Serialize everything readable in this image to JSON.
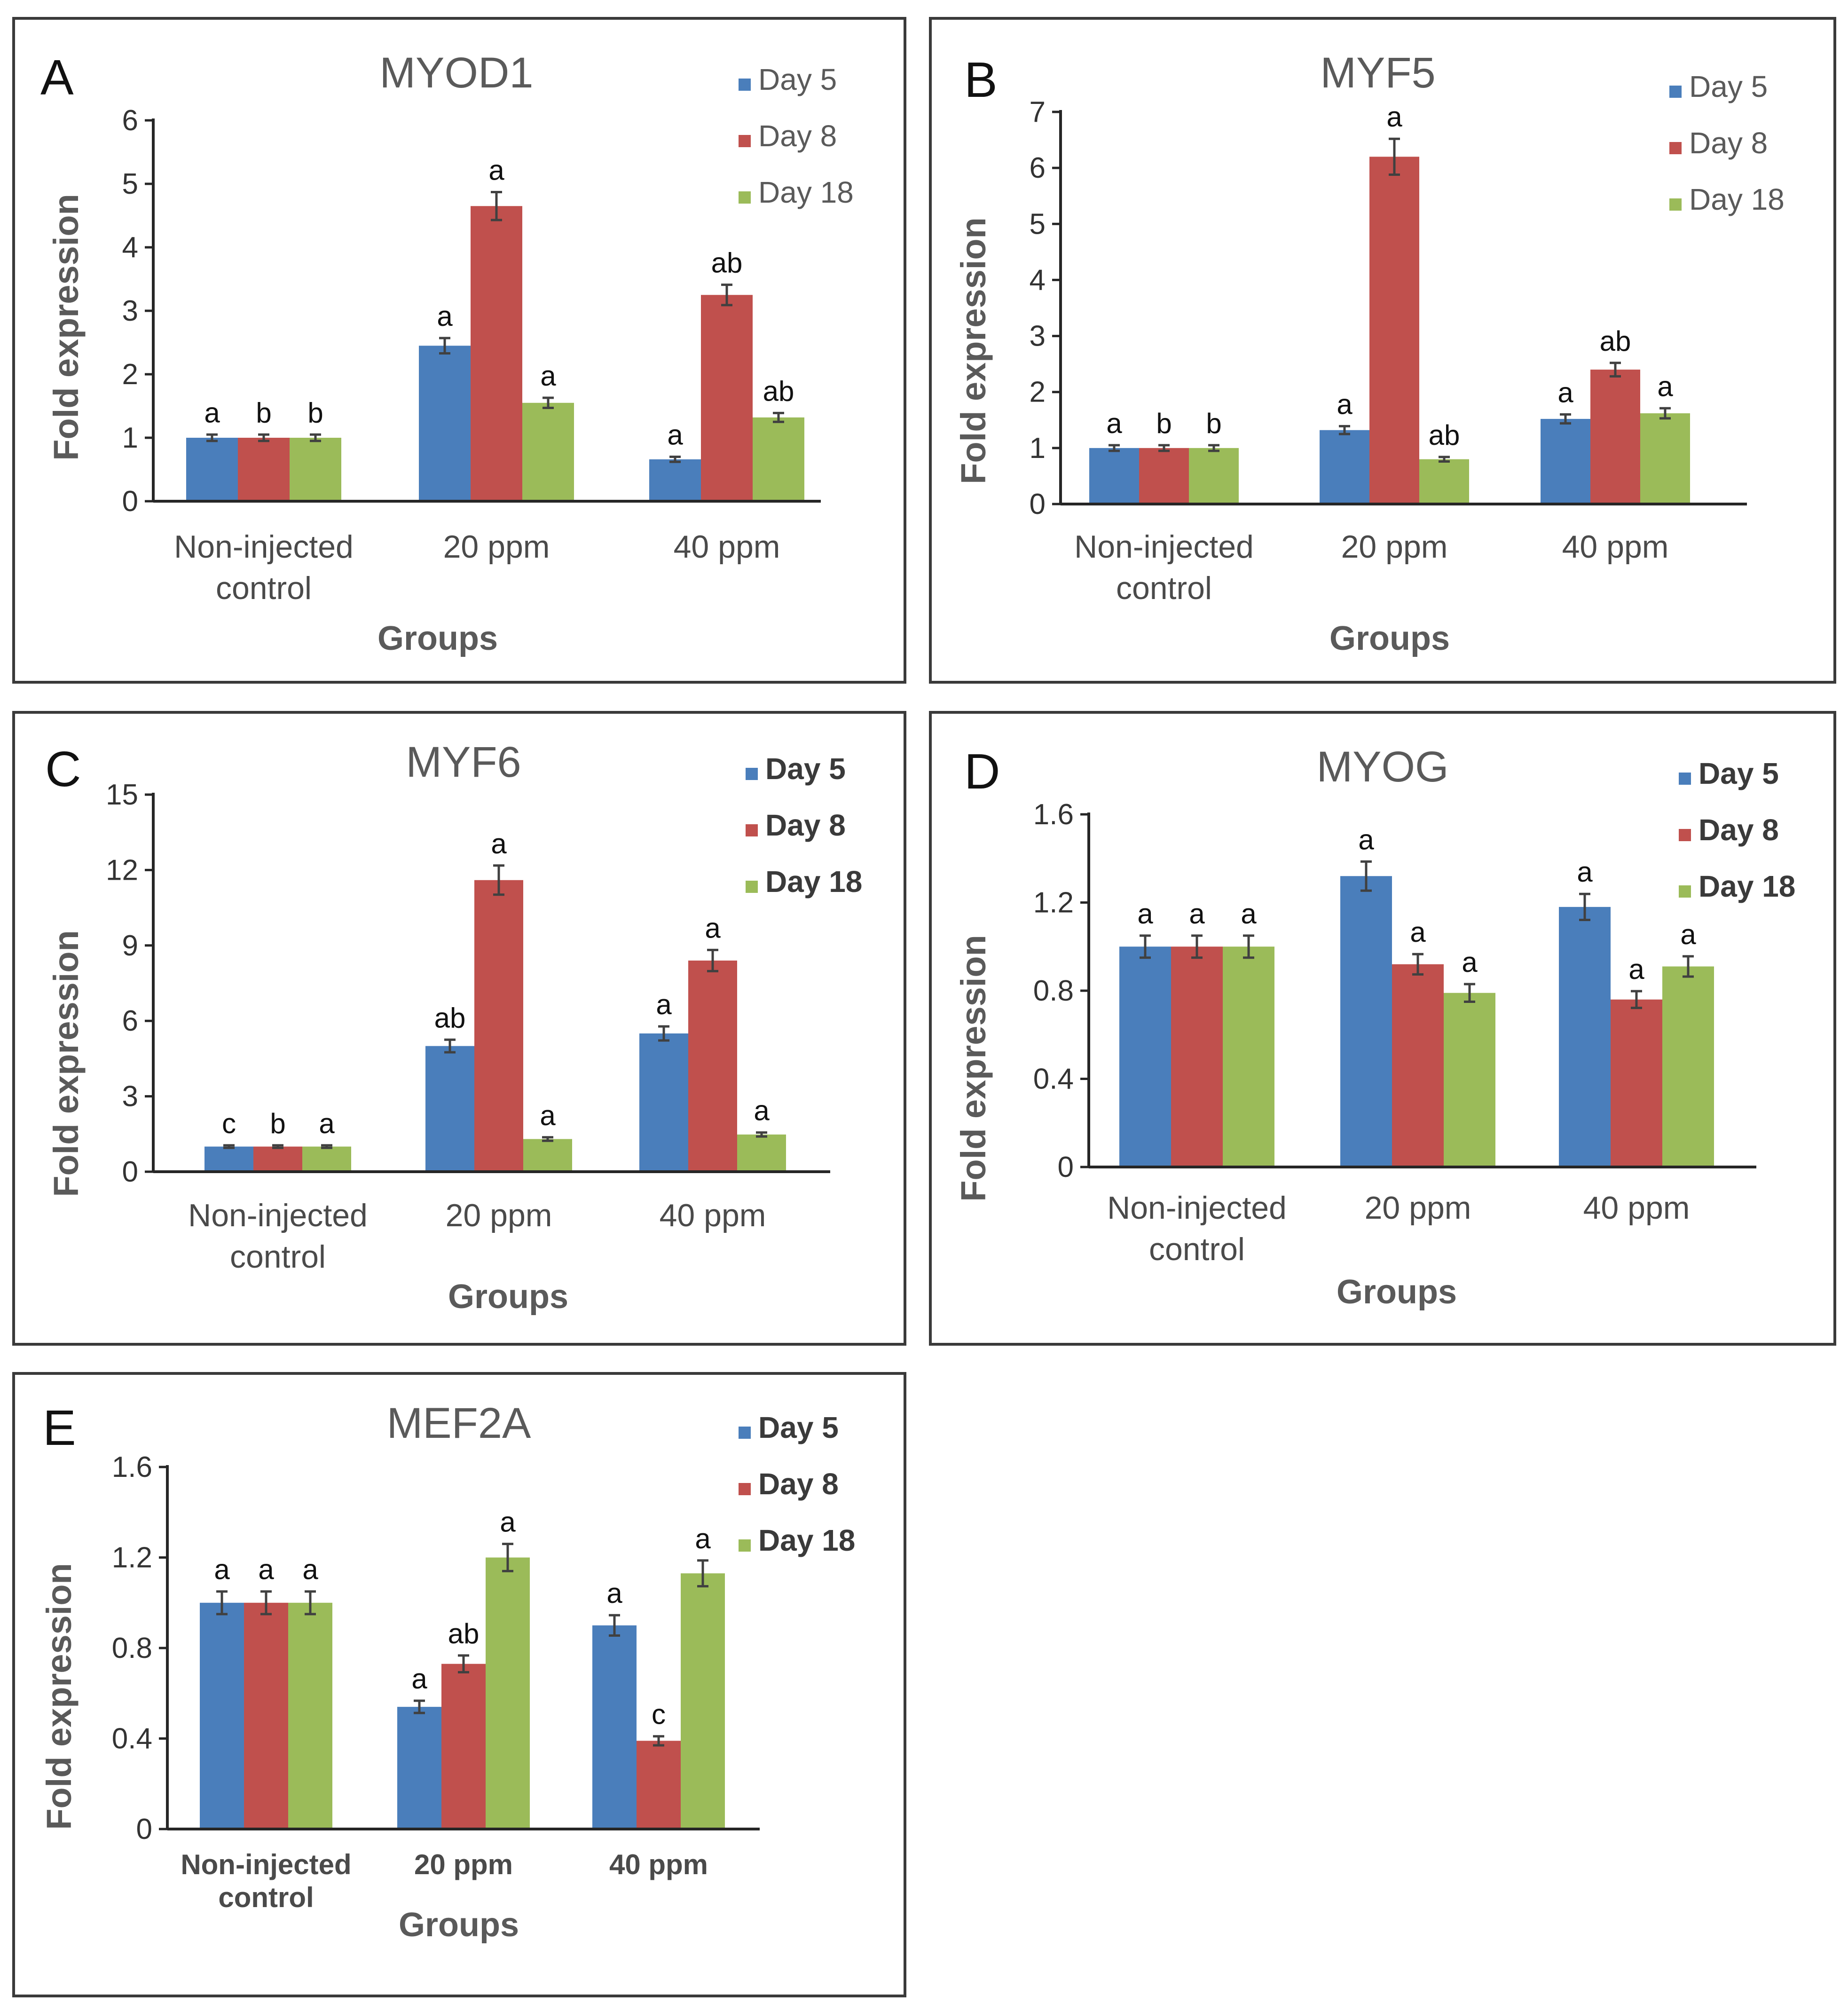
{
  "colors": {
    "Day 5": "#4A7EBB",
    "Day 8": "#C0504D",
    "Day 18": "#9BBB59"
  },
  "chart_data": [
    {
      "panel_letter": "A",
      "type": "bar",
      "title": "MYOD1",
      "xlabel": "Groups",
      "ylabel": "Fold expression",
      "categories": [
        "Non-injected control",
        "20 ppm",
        "40 ppm"
      ],
      "ylim": [
        0,
        6
      ],
      "yticks": [
        "0",
        "1",
        "2",
        "3",
        "4",
        "5",
        "6"
      ],
      "legend_bold": false,
      "series": [
        {
          "name": "Day 5",
          "values": [
            1.0,
            2.45,
            0.66
          ],
          "errors": [
            0.05,
            0.12,
            0.04
          ],
          "labels": [
            "a",
            "a",
            "a"
          ]
        },
        {
          "name": "Day 8",
          "values": [
            1.0,
            4.65,
            3.25
          ],
          "errors": [
            0.05,
            0.22,
            0.16
          ],
          "labels": [
            "b",
            "a",
            "ab"
          ]
        },
        {
          "name": "Day 18",
          "values": [
            1.0,
            1.55,
            1.32
          ],
          "errors": [
            0.05,
            0.08,
            0.07
          ],
          "labels": [
            "b",
            "a",
            "ab"
          ]
        }
      ]
    },
    {
      "panel_letter": "B",
      "type": "bar",
      "title": "MYF5",
      "xlabel": "Groups",
      "ylabel": "Fold expression",
      "categories": [
        "Non-injected control",
        "20 ppm",
        "40 ppm"
      ],
      "ylim": [
        0,
        7
      ],
      "yticks": [
        "0",
        "1",
        "2",
        "3",
        "4",
        "5",
        "6",
        "7"
      ],
      "legend_bold": false,
      "series": [
        {
          "name": "Day 5",
          "values": [
            1.0,
            1.32,
            1.52
          ],
          "errors": [
            0.05,
            0.07,
            0.08
          ],
          "labels": [
            "a",
            "a",
            "a"
          ]
        },
        {
          "name": "Day 8",
          "values": [
            1.0,
            6.2,
            2.4
          ],
          "errors": [
            0.05,
            0.32,
            0.12
          ],
          "labels": [
            "b",
            "a",
            "ab"
          ]
        },
        {
          "name": "Day 18",
          "values": [
            1.0,
            0.8,
            1.62
          ],
          "errors": [
            0.05,
            0.04,
            0.09
          ],
          "labels": [
            "b",
            "ab",
            "a"
          ]
        }
      ]
    },
    {
      "panel_letter": "C",
      "type": "bar",
      "title": "MYF6",
      "xlabel": "Groups",
      "ylabel": "Fold expression",
      "categories": [
        "Non-injected control",
        "20 ppm",
        "40 ppm"
      ],
      "ylim": [
        0,
        15
      ],
      "yticks": [
        "0",
        "3",
        "6",
        "9",
        "12",
        "15"
      ],
      "legend_bold": true,
      "series": [
        {
          "name": "Day 5",
          "values": [
            1.0,
            5.0,
            5.5
          ],
          "errors": [
            0.05,
            0.25,
            0.28
          ],
          "labels": [
            "c",
            "ab",
            "a"
          ]
        },
        {
          "name": "Day 8",
          "values": [
            1.0,
            11.6,
            8.4
          ],
          "errors": [
            0.05,
            0.58,
            0.42
          ],
          "labels": [
            "b",
            "a",
            "a"
          ]
        },
        {
          "name": "Day 18",
          "values": [
            1.0,
            1.3,
            1.48
          ],
          "errors": [
            0.05,
            0.07,
            0.08
          ],
          "labels": [
            "a",
            "a",
            "a"
          ]
        }
      ]
    },
    {
      "panel_letter": "D",
      "type": "bar",
      "title": "MYOG",
      "xlabel": "Groups",
      "ylabel": "Fold expression",
      "categories": [
        "Non-injected control",
        "20 ppm",
        "40 ppm"
      ],
      "ylim": [
        0,
        1.6
      ],
      "yticks": [
        "0",
        "0.4",
        "0.8",
        "1.2",
        "1.6"
      ],
      "legend_bold": true,
      "series": [
        {
          "name": "Day 5",
          "values": [
            1.0,
            1.32,
            1.18
          ],
          "errors": [
            0.05,
            0.066,
            0.059
          ],
          "labels": [
            "a",
            "a",
            "a"
          ]
        },
        {
          "name": "Day 8",
          "values": [
            1.0,
            0.92,
            0.76
          ],
          "errors": [
            0.05,
            0.046,
            0.038
          ],
          "labels": [
            "a",
            "a",
            "a"
          ]
        },
        {
          "name": "Day 18",
          "values": [
            1.0,
            0.79,
            0.91
          ],
          "errors": [
            0.05,
            0.04,
            0.046
          ],
          "labels": [
            "a",
            "a",
            "a"
          ]
        }
      ]
    },
    {
      "panel_letter": "E",
      "type": "bar",
      "title": "MEF2A",
      "xlabel": "Groups",
      "ylabel": "Fold expression",
      "categories": [
        "Non-injected control",
        "20 ppm",
        "40 ppm"
      ],
      "ylim": [
        0,
        1.6
      ],
      "yticks": [
        "0",
        "0.4",
        "0.8",
        "1.2",
        "1.6"
      ],
      "legend_bold": true,
      "series": [
        {
          "name": "Day 5",
          "values": [
            1.0,
            0.54,
            0.9
          ],
          "errors": [
            0.05,
            0.027,
            0.045
          ],
          "labels": [
            "a",
            "a",
            "a"
          ]
        },
        {
          "name": "Day 8",
          "values": [
            1.0,
            0.73,
            0.39
          ],
          "errors": [
            0.05,
            0.037,
            0.02
          ],
          "labels": [
            "a",
            "ab",
            "c"
          ]
        },
        {
          "name": "Day 18",
          "values": [
            1.0,
            1.2,
            1.13
          ],
          "errors": [
            0.05,
            0.06,
            0.057
          ],
          "labels": [
            "a",
            "a",
            "a"
          ]
        }
      ]
    }
  ]
}
